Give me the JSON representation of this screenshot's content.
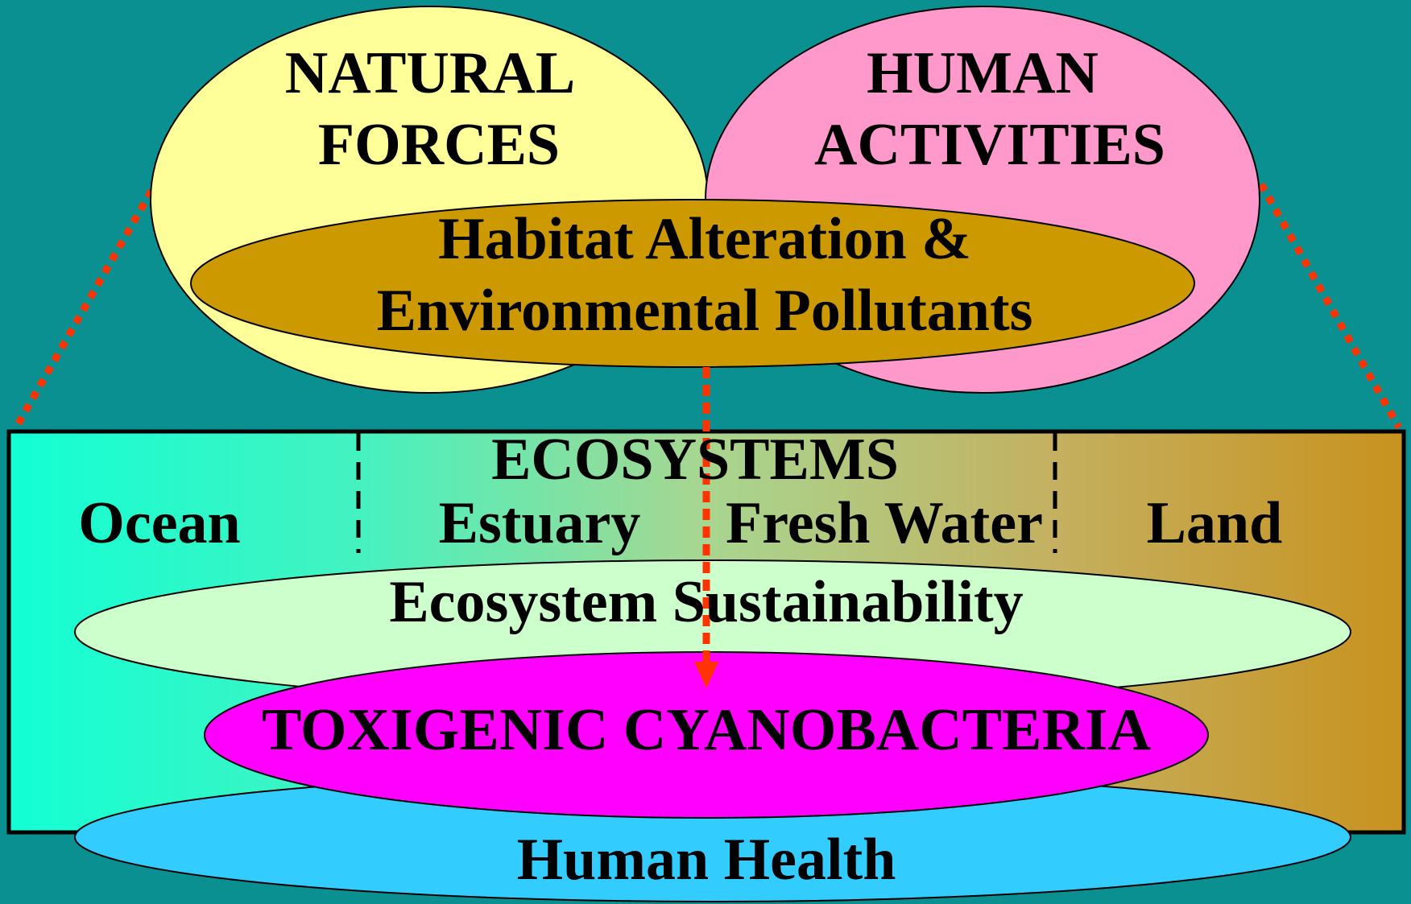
{
  "forces": {
    "natural": [
      "NATURAL",
      "FORCES"
    ],
    "human": [
      "HUMAN",
      "ACTIVITIES"
    ]
  },
  "impact": [
    "Habitat Alteration &",
    "Environmental Pollutants"
  ],
  "ecosystems": {
    "title": "ECOSYSTEMS",
    "zones": [
      "Ocean",
      "Estuary",
      "Fresh Water",
      "Land"
    ]
  },
  "outcomes": {
    "sustainability": "Ecosystem Sustainability",
    "cyanobacteria": "TOXIGENIC CYANOBACTERIA",
    "health": "Human Health"
  }
}
